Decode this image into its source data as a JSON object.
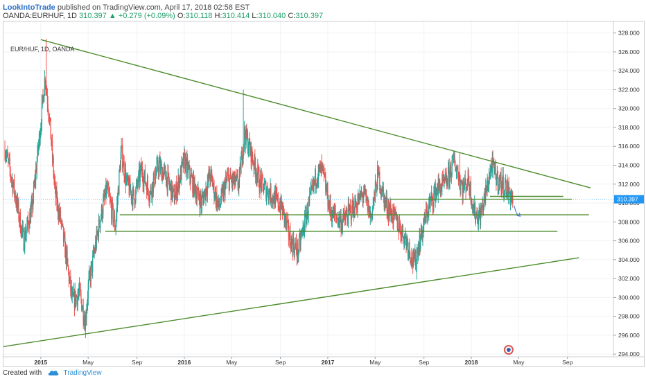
{
  "header": {
    "author": "LookIntoTrade",
    "published_text": "published on TradingView.com, April 17, 2018 02:58 EST"
  },
  "ohlc": {
    "symbol_text": "OANDA:EURHUF, 1D",
    "last": "310.397",
    "change": "+0.279 (+0.09%)",
    "open_label": "O:",
    "open": "310.118",
    "high_label": "H:",
    "high": "310.414",
    "low_label": "L:",
    "low": "310.040",
    "close_label": "C:",
    "close": "310.397"
  },
  "pair_label": "EUR/HUF, 1D, OANDA",
  "footer": {
    "created_with": "Created with",
    "brand": "TradingView"
  },
  "colors": {
    "up": "#26a69a",
    "down": "#ef5350",
    "trendline": "#4c8c2b",
    "price_badge": "#2196f3",
    "arrow": "#4f7fd8",
    "grid": "#f0f2f5"
  },
  "chart_data": {
    "type": "candlestick",
    "title": "EUR/HUF, 1D, OANDA",
    "ylim": [
      293.5,
      329
    ],
    "y_ticks": [
      "294.000",
      "296.000",
      "298.000",
      "300.000",
      "302.000",
      "304.000",
      "306.000",
      "308.000",
      "310.000",
      "312.000",
      "314.000",
      "316.000",
      "318.000",
      "320.000",
      "322.000",
      "324.000",
      "326.000",
      "328.000"
    ],
    "x_ticks": [
      {
        "label": "2015",
        "year": 2015.0,
        "bold": true
      },
      {
        "label": "May",
        "year": 2015.33
      },
      {
        "label": "Sep",
        "year": 2015.67
      },
      {
        "label": "2016",
        "year": 2016.0,
        "bold": true
      },
      {
        "label": "May",
        "year": 2016.33
      },
      {
        "label": "Sep",
        "year": 2016.67
      },
      {
        "label": "2017",
        "year": 2017.0,
        "bold": true
      },
      {
        "label": "May",
        "year": 2017.33
      },
      {
        "label": "Sep",
        "year": 2017.67
      },
      {
        "label": "2018",
        "year": 2018.0,
        "bold": true
      },
      {
        "label": "May",
        "year": 2018.33
      },
      {
        "label": "Sep",
        "year": 2018.67
      }
    ],
    "last_price": 310.397,
    "last_price_label": "310.397",
    "price_path": [
      [
        2014.75,
        315.8
      ],
      [
        2014.82,
        311.0
      ],
      [
        2014.88,
        306.0
      ],
      [
        2014.94,
        309.5
      ],
      [
        2015.0,
        318.5
      ],
      [
        2015.03,
        323.5
      ],
      [
        2015.06,
        319.0
      ],
      [
        2015.1,
        311.0
      ],
      [
        2015.14,
        308.0
      ],
      [
        2015.18,
        304.0
      ],
      [
        2015.22,
        299.5
      ],
      [
        2015.27,
        300.5
      ],
      [
        2015.31,
        297.5
      ],
      [
        2015.33,
        301.0
      ],
      [
        2015.37,
        304.5
      ],
      [
        2015.41,
        308.0
      ],
      [
        2015.46,
        311.5
      ],
      [
        2015.52,
        307.5
      ],
      [
        2015.56,
        315.5
      ],
      [
        2015.6,
        312.0
      ],
      [
        2015.65,
        310.5
      ],
      [
        2015.7,
        313.5
      ],
      [
        2015.76,
        311.0
      ],
      [
        2015.82,
        314.0
      ],
      [
        2015.88,
        312.5
      ],
      [
        2015.93,
        310.5
      ],
      [
        2016.0,
        314.5
      ],
      [
        2016.06,
        312.0
      ],
      [
        2016.12,
        310.0
      ],
      [
        2016.18,
        313.0
      ],
      [
        2016.24,
        309.5
      ],
      [
        2016.3,
        312.5
      ],
      [
        2016.38,
        312.0
      ],
      [
        2016.42,
        317.5
      ],
      [
        2016.47,
        315.0
      ],
      [
        2016.53,
        312.0
      ],
      [
        2016.6,
        311.0
      ],
      [
        2016.68,
        309.5
      ],
      [
        2016.74,
        306.0
      ],
      [
        2016.79,
        304.8
      ],
      [
        2016.84,
        308.0
      ],
      [
        2016.92,
        313.0
      ],
      [
        2016.96,
        313.5
      ],
      [
        2017.02,
        309.0
      ],
      [
        2017.1,
        308.0
      ],
      [
        2017.18,
        309.5
      ],
      [
        2017.25,
        311.0
      ],
      [
        2017.3,
        308.5
      ],
      [
        2017.35,
        313.0
      ],
      [
        2017.4,
        310.0
      ],
      [
        2017.48,
        308.0
      ],
      [
        2017.55,
        306.0
      ],
      [
        2017.6,
        303.5
      ],
      [
        2017.64,
        306.0
      ],
      [
        2017.7,
        309.5
      ],
      [
        2017.76,
        311.5
      ],
      [
        2017.82,
        312.0
      ],
      [
        2017.88,
        314.5
      ],
      [
        2017.94,
        311.5
      ],
      [
        2017.98,
        312.5
      ],
      [
        2018.02,
        309.0
      ],
      [
        2018.06,
        308.5
      ],
      [
        2018.1,
        311.0
      ],
      [
        2018.14,
        314.0
      ],
      [
        2018.18,
        312.5
      ],
      [
        2018.22,
        312.0
      ],
      [
        2018.26,
        311.2
      ],
      [
        2018.29,
        310.4
      ]
    ],
    "extremes": [
      {
        "year": 2015.04,
        "high": 327.4
      },
      {
        "year": 2015.31,
        "low": 295.7
      },
      {
        "year": 2016.41,
        "high": 322.0
      },
      {
        "year": 2016.79,
        "low": 303.5
      },
      {
        "year": 2017.62,
        "low": 301.9
      },
      {
        "year": 2017.92,
        "high": 315.3
      }
    ],
    "trendlines": [
      {
        "name": "upper-trendline",
        "from": [
          2015.0,
          327.3
        ],
        "to": [
          2018.83,
          311.6
        ]
      },
      {
        "name": "lower-trendline",
        "from": [
          2014.74,
          294.8
        ],
        "to": [
          2018.75,
          304.2
        ]
      }
    ],
    "levels": [
      {
        "name": "level-310-7",
        "from": 2018.13,
        "to": 2018.64,
        "y": 310.7
      },
      {
        "name": "level-310-4",
        "from": 2017.43,
        "to": 2018.7,
        "y": 310.4
      },
      {
        "name": "level-308-8",
        "from": 2015.55,
        "to": 2018.82,
        "y": 308.75
      },
      {
        "name": "level-307",
        "from": 2015.45,
        "to": 2018.6,
        "y": 307.0
      }
    ],
    "projection_arrow": {
      "from": [
        2018.3,
        309.7
      ],
      "to": [
        2018.34,
        308.6
      ]
    }
  }
}
